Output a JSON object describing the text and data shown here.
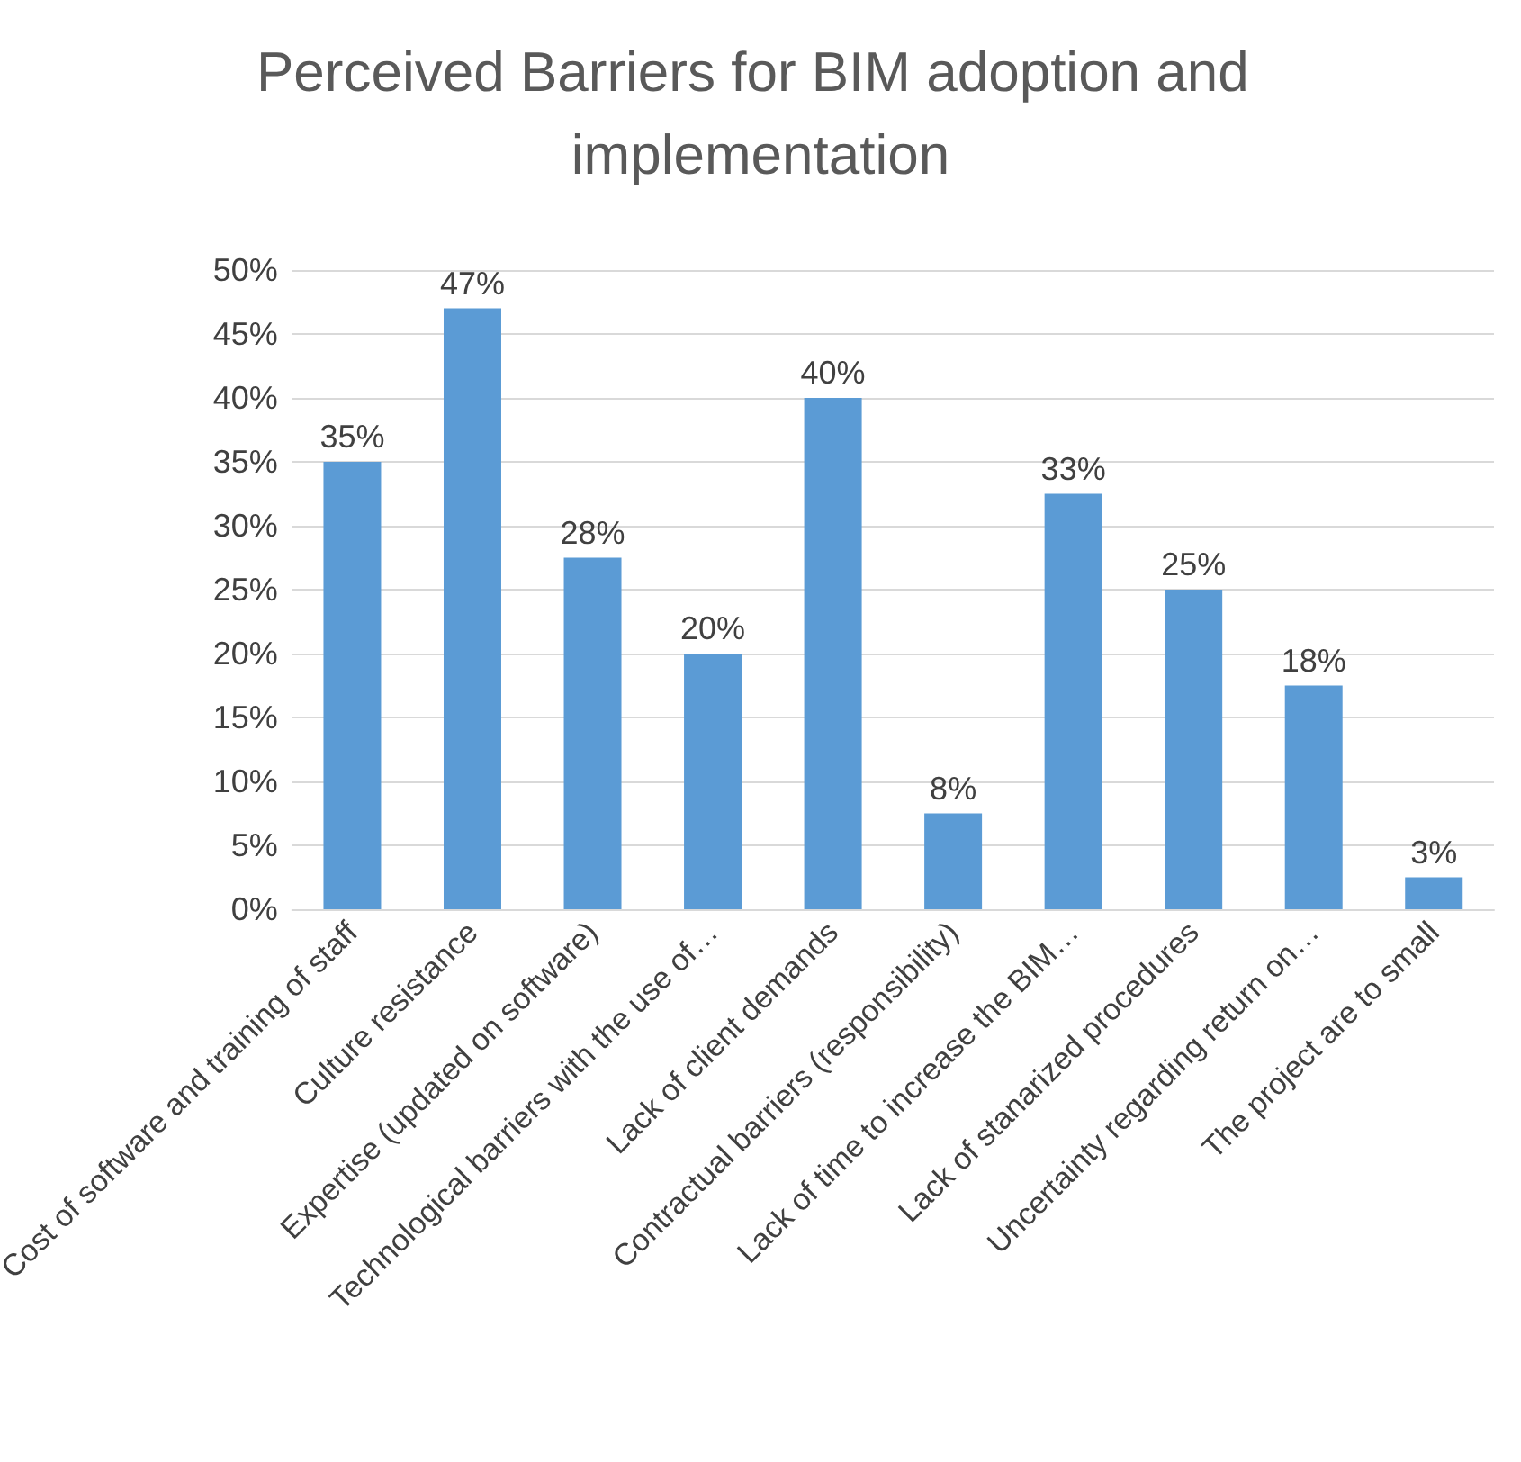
{
  "chart_data": {
    "type": "bar",
    "title": "Perceived Barriers for BIM adoption and implementation",
    "categories": [
      "Cost of software and training of staff",
      "Culture resistance",
      "Expertise (updated on software)",
      "Technological barriers with the use of…",
      "Lack of client demands",
      "Contractual barriers (responsibility)",
      "Lack of time to increase the BIM…",
      "Lack of stanarized procedures",
      "Uncertainty regarding return on…",
      "The project are to small"
    ],
    "values": [
      35,
      47,
      27.5,
      20,
      40,
      7.5,
      32.5,
      25,
      17.5,
      2.5
    ],
    "value_labels": [
      "35%",
      "47%",
      "28%",
      "20%",
      "40%",
      "8%",
      "33%",
      "25%",
      "18%",
      "3%"
    ],
    "color": "#5b9bd5",
    "ylim": [
      0,
      50
    ],
    "yticks": [
      {
        "value": 0,
        "label": "0%"
      },
      {
        "value": 5,
        "label": "5%"
      },
      {
        "value": 10,
        "label": "10%"
      },
      {
        "value": 15,
        "label": "15%"
      },
      {
        "value": 20,
        "label": "20%"
      },
      {
        "value": 25,
        "label": "25%"
      },
      {
        "value": 30,
        "label": "30%"
      },
      {
        "value": 35,
        "label": "35%"
      },
      {
        "value": 40,
        "label": "40%"
      },
      {
        "value": 45,
        "label": "45%"
      },
      {
        "value": 50,
        "label": "50%"
      }
    ],
    "grid": true
  }
}
